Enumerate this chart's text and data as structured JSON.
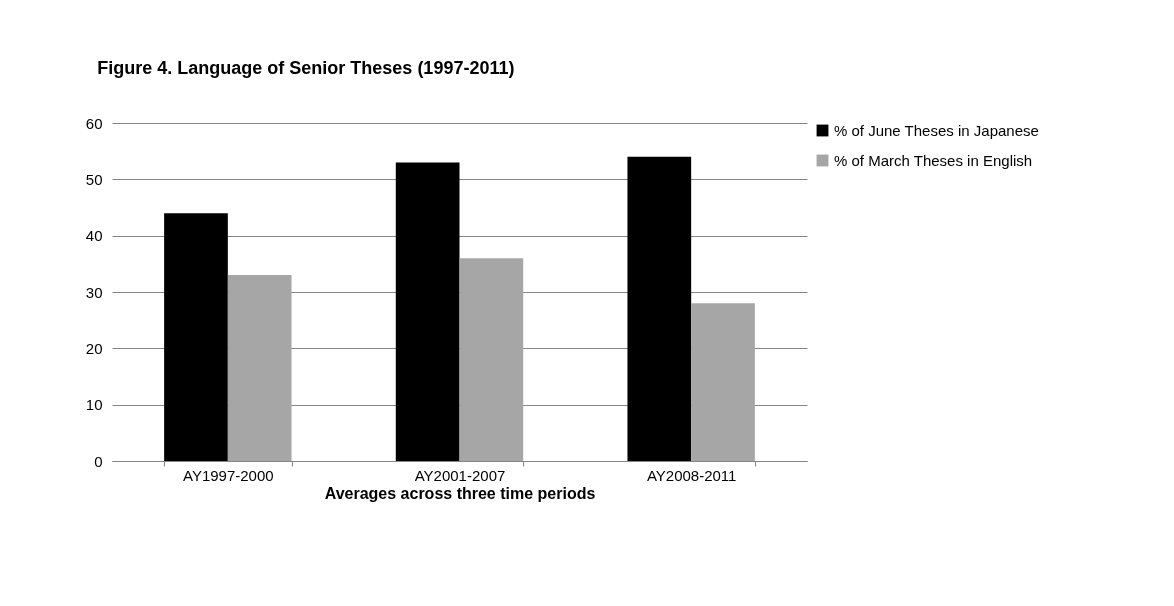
{
  "chart_data": {
    "type": "bar",
    "title": "Figure 4. Language of Senior Theses (1997-2011)",
    "xlabel": "Averages across three time periods",
    "categories": [
      "AY1997-2000",
      "AY2001-2007",
      "AY2008-2011"
    ],
    "series": [
      {
        "name": "% of June Theses in Japanese",
        "color": "#000000",
        "values": [
          44,
          53,
          54
        ]
      },
      {
        "name": "% of March Theses in English",
        "color": "#a6a6a6",
        "values": [
          33,
          36,
          28
        ]
      }
    ],
    "ylim": [
      0,
      60
    ],
    "yticks": [
      0,
      10,
      20,
      30,
      40,
      50,
      60
    ],
    "grid": "y",
    "legend": "right"
  }
}
